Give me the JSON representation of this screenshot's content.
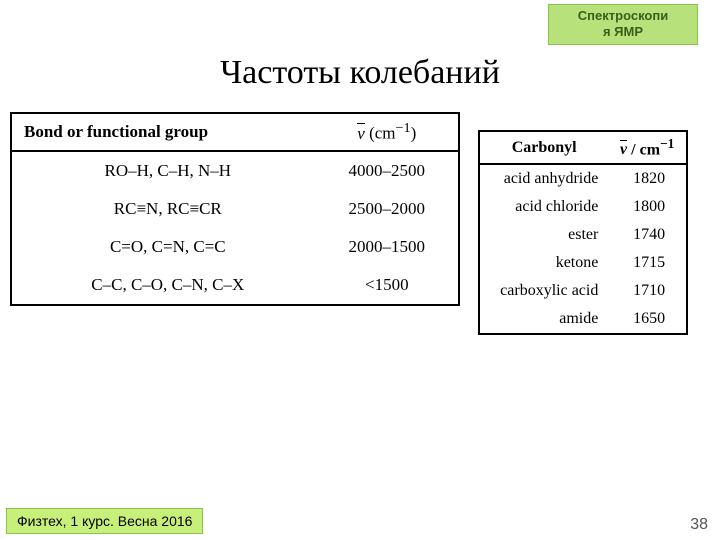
{
  "badge": {
    "line1": "Спектроскопи",
    "line2": "я ЯМР"
  },
  "title": "Частоты колебаний",
  "leftTable": {
    "header": {
      "col1": "Bond or functional group",
      "col2_prefix": "ν",
      "col2_suffix": " (cm",
      "col2_exp": "−1",
      "col2_close": ")"
    },
    "rows": [
      {
        "label": "RO–H, C–H, N–H",
        "value": "4000–2500"
      },
      {
        "label": "RC≡N, RC≡CR",
        "value": "2500–2000"
      },
      {
        "label": "C=O, C=N, C=C",
        "value": "2000–1500"
      },
      {
        "label": "C–C, C–O, C–N, C–X",
        "value": "<1500"
      }
    ]
  },
  "rightTable": {
    "header": {
      "col1": "Carbonyl",
      "col2_nu": "ν",
      "col2_slash": " / cm",
      "col2_exp": "−1"
    },
    "rows": [
      {
        "label": "acid anhydride",
        "value": "1820"
      },
      {
        "label": "acid chloride",
        "value": "1800"
      },
      {
        "label": "ester",
        "value": "1740"
      },
      {
        "label": "ketone",
        "value": "1715"
      },
      {
        "label": "carboxylic acid",
        "value": "1710"
      },
      {
        "label": "amide",
        "value": "1650"
      }
    ]
  },
  "footer": {
    "left": "Физтех, 1 курс. Весна 2016",
    "pageNumber": "38"
  },
  "colors": {
    "badge_bg": "#b7e17a",
    "badge_border": "#8bc34a",
    "footer_bg": "#c7f07a",
    "table_border": "#000000",
    "page_bg": "#ffffff"
  }
}
